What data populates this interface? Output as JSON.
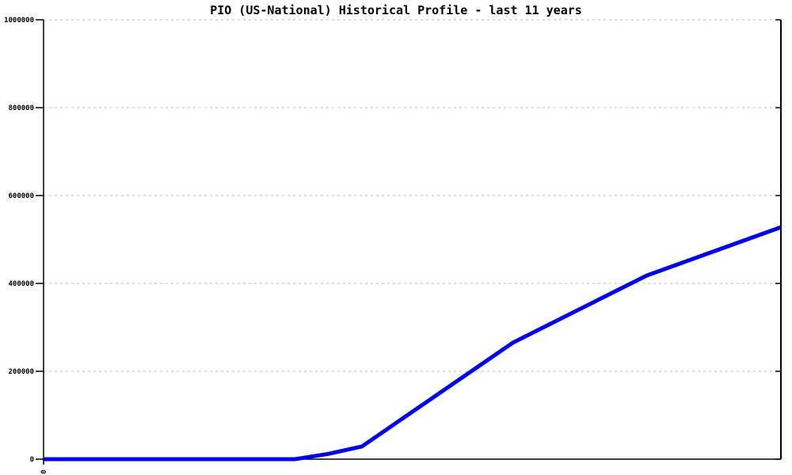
{
  "title": "PIO (US-National) Historical Profile - last 11 years",
  "chart_data": {
    "type": "line",
    "title": "PIO (US-National) Historical Profile - last 11 years",
    "xlabel": "",
    "ylabel": "",
    "x_axis": {
      "range_years": [
        0,
        11
      ],
      "visible_tick_labels": [
        "0"
      ],
      "tick_label_style": "rotated 90deg, clipped by bottom edge of image"
    },
    "y_axis": {
      "range": [
        0,
        1000000
      ],
      "ticks": [
        0,
        200000,
        400000,
        600000,
        800000,
        1000000
      ],
      "tick_labels": [
        "0",
        "200000",
        "400000",
        "600000",
        "800000",
        "1000000"
      ]
    },
    "grid": {
      "horizontal": "dotted",
      "vertical": "none"
    },
    "legend": "none",
    "series": [
      {
        "name": "PIO (US-National)",
        "color": "#0000ee",
        "points": [
          {
            "x_years": 0,
            "value": 0
          },
          {
            "x_years": 3.75,
            "value": 0
          },
          {
            "x_years": 4.25,
            "value": 12000
          },
          {
            "x_years": 4.75,
            "value": 29000
          },
          {
            "x_years": 7,
            "value": 265000
          },
          {
            "x_years": 9,
            "value": 418000
          },
          {
            "x_years": 11,
            "value": 528000
          }
        ]
      }
    ]
  },
  "colors": {
    "line": "#0000ee",
    "axis": "#000000",
    "grid": "#b8b8b8",
    "text": "#000000",
    "background": "#ffffff"
  }
}
